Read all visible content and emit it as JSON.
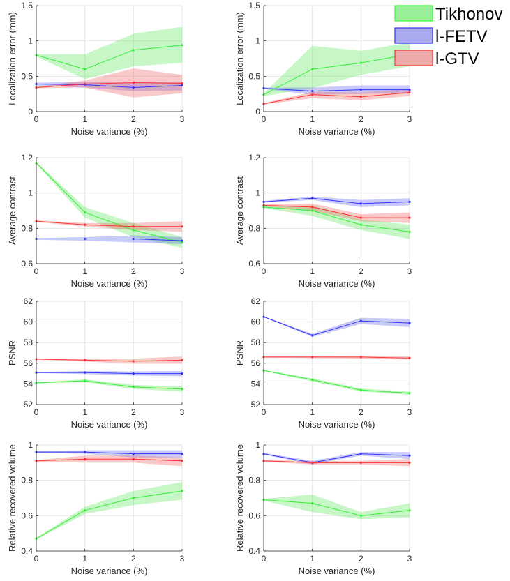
{
  "legend": [
    {
      "label": "Tikhonov",
      "color": "#33ff33",
      "fill": "#99ee99"
    },
    {
      "label": "l-FETV",
      "color": "#3333ff",
      "fill": "#aaaaee"
    },
    {
      "label": "l-GTV",
      "color": "#ff3333",
      "fill": "#eeaaaa"
    }
  ],
  "chart_data": [
    {
      "type": "line",
      "xlabel": "Noise variance (%)",
      "ylabel": "Localization error (mm)",
      "xlim": [
        0,
        3
      ],
      "ylim": [
        0,
        1.5
      ],
      "xticks": [
        "0",
        "1",
        "2",
        "3"
      ],
      "yticks": [
        "0",
        "0.5",
        "1",
        "1.5"
      ],
      "grid": true,
      "x": [
        0,
        1,
        2,
        3
      ],
      "series": [
        {
          "name": "Tikhonov",
          "values": [
            0.8,
            0.6,
            0.87,
            0.94
          ],
          "lower": [
            0.78,
            0.46,
            0.64,
            0.69
          ],
          "upper": [
            0.81,
            0.81,
            1.1,
            1.2
          ]
        },
        {
          "name": "l-FETV",
          "values": [
            0.39,
            0.38,
            0.34,
            0.37
          ],
          "lower": [
            0.37,
            0.34,
            0.29,
            0.3
          ],
          "upper": [
            0.41,
            0.42,
            0.41,
            0.42
          ]
        },
        {
          "name": "l-GTV",
          "values": [
            0.34,
            0.39,
            0.41,
            0.4
          ],
          "lower": [
            0.33,
            0.34,
            0.2,
            0.26
          ],
          "upper": [
            0.35,
            0.44,
            0.61,
            0.52
          ]
        }
      ]
    },
    {
      "type": "line",
      "xlabel": "Noise variance (%)",
      "ylabel": "Localization error (mm)",
      "xlim": [
        0,
        3
      ],
      "ylim": [
        0,
        1.5
      ],
      "xticks": [
        "0",
        "1",
        "2",
        "3"
      ],
      "yticks": [
        "0",
        "0.5",
        "1",
        "1.5"
      ],
      "grid": true,
      "x": [
        0,
        1,
        2,
        3
      ],
      "series": [
        {
          "name": "Tikhonov",
          "values": [
            0.24,
            0.6,
            0.69,
            0.81
          ],
          "lower": [
            0.22,
            0.33,
            0.52,
            0.64
          ],
          "upper": [
            0.26,
            0.93,
            0.86,
            0.98
          ]
        },
        {
          "name": "l-FETV",
          "values": [
            0.33,
            0.29,
            0.31,
            0.31
          ],
          "lower": [
            0.32,
            0.24,
            0.25,
            0.26
          ],
          "upper": [
            0.34,
            0.34,
            0.37,
            0.37
          ]
        },
        {
          "name": "l-GTV",
          "values": [
            0.11,
            0.24,
            0.21,
            0.27
          ],
          "lower": [
            0.1,
            0.19,
            0.16,
            0.22
          ],
          "upper": [
            0.12,
            0.28,
            0.27,
            0.32
          ]
        }
      ]
    },
    {
      "type": "line",
      "xlabel": "Noise variance (%)",
      "ylabel": "Average contrast",
      "xlim": [
        0,
        3
      ],
      "ylim": [
        0.6,
        1.2
      ],
      "xticks": [
        "0",
        "1",
        "2",
        "3"
      ],
      "yticks": [
        "0.6",
        "0.8",
        "1",
        "1.2"
      ],
      "grid": true,
      "x": [
        0,
        1,
        2,
        3
      ],
      "series": [
        {
          "name": "Tikhonov",
          "values": [
            1.17,
            0.89,
            0.79,
            0.72
          ],
          "lower": [
            1.165,
            0.86,
            0.75,
            0.69
          ],
          "upper": [
            1.175,
            0.92,
            0.83,
            0.75
          ]
        },
        {
          "name": "l-FETV",
          "values": [
            0.74,
            0.74,
            0.74,
            0.73
          ],
          "lower": [
            0.735,
            0.73,
            0.72,
            0.71
          ],
          "upper": [
            0.745,
            0.75,
            0.76,
            0.75
          ]
        },
        {
          "name": "l-GTV",
          "values": [
            0.84,
            0.82,
            0.81,
            0.81
          ],
          "lower": [
            0.835,
            0.81,
            0.79,
            0.78
          ],
          "upper": [
            0.845,
            0.83,
            0.83,
            0.84
          ]
        }
      ]
    },
    {
      "type": "line",
      "xlabel": "Noise variance (%)",
      "ylabel": "Average contrast",
      "xlim": [
        0,
        3
      ],
      "ylim": [
        0.6,
        1.2
      ],
      "xticks": [
        "0",
        "1",
        "2",
        "3"
      ],
      "yticks": [
        "0.6",
        "0.8",
        "1",
        "1.2"
      ],
      "grid": true,
      "x": [
        0,
        1,
        2,
        3
      ],
      "series": [
        {
          "name": "Tikhonov",
          "values": [
            0.92,
            0.9,
            0.82,
            0.78
          ],
          "lower": [
            0.915,
            0.87,
            0.79,
            0.74
          ],
          "upper": [
            0.925,
            0.93,
            0.85,
            0.82
          ]
        },
        {
          "name": "l-FETV",
          "values": [
            0.95,
            0.97,
            0.94,
            0.95
          ],
          "lower": [
            0.945,
            0.96,
            0.92,
            0.93
          ],
          "upper": [
            0.955,
            0.98,
            0.96,
            0.97
          ]
        },
        {
          "name": "l-GTV",
          "values": [
            0.93,
            0.92,
            0.86,
            0.86
          ],
          "lower": [
            0.925,
            0.9,
            0.84,
            0.83
          ],
          "upper": [
            0.935,
            0.94,
            0.88,
            0.89
          ]
        }
      ]
    },
    {
      "type": "line",
      "xlabel": "Noise variance (%)",
      "ylabel": "PSNR",
      "xlim": [
        0,
        3
      ],
      "ylim": [
        52,
        62
      ],
      "xticks": [
        "0",
        "1",
        "2",
        "3"
      ],
      "yticks": [
        "52",
        "54",
        "56",
        "58",
        "60",
        "62"
      ],
      "grid": true,
      "x": [
        0,
        1,
        2,
        3
      ],
      "series": [
        {
          "name": "Tikhonov",
          "values": [
            54.1,
            54.3,
            53.7,
            53.5
          ],
          "lower": [
            54.05,
            54.15,
            53.5,
            53.25
          ],
          "upper": [
            54.15,
            54.45,
            53.9,
            53.75
          ]
        },
        {
          "name": "l-FETV",
          "values": [
            55.1,
            55.1,
            55.0,
            55.0
          ],
          "lower": [
            55.05,
            54.95,
            54.8,
            54.75
          ],
          "upper": [
            55.15,
            55.25,
            55.2,
            55.25
          ]
        },
        {
          "name": "l-GTV",
          "values": [
            56.4,
            56.3,
            56.2,
            56.3
          ],
          "lower": [
            56.35,
            56.15,
            55.95,
            55.95
          ],
          "upper": [
            56.45,
            56.45,
            56.45,
            56.65
          ]
        }
      ]
    },
    {
      "type": "line",
      "xlabel": "Noise variance (%)",
      "ylabel": "PSNR",
      "xlim": [
        0,
        3
      ],
      "ylim": [
        52,
        62
      ],
      "xticks": [
        "0",
        "1",
        "2",
        "3"
      ],
      "yticks": [
        "52",
        "54",
        "56",
        "58",
        "60",
        "62"
      ],
      "grid": true,
      "x": [
        0,
        1,
        2,
        3
      ],
      "series": [
        {
          "name": "Tikhonov",
          "values": [
            55.3,
            54.4,
            53.4,
            53.1
          ],
          "lower": [
            55.25,
            54.25,
            53.25,
            52.95
          ],
          "upper": [
            55.35,
            54.55,
            53.55,
            53.25
          ]
        },
        {
          "name": "l-FETV",
          "values": [
            60.5,
            58.7,
            60.1,
            59.9
          ],
          "lower": [
            60.45,
            58.55,
            59.8,
            59.5
          ],
          "upper": [
            60.55,
            58.85,
            60.4,
            60.3
          ]
        },
        {
          "name": "l-GTV",
          "values": [
            56.6,
            56.6,
            56.6,
            56.5
          ],
          "lower": [
            56.55,
            56.5,
            56.45,
            56.35
          ],
          "upper": [
            56.65,
            56.7,
            56.75,
            56.65
          ]
        }
      ]
    },
    {
      "type": "line",
      "xlabel": "Noise variance (%)",
      "ylabel": "Relative recovered volume",
      "xlim": [
        0,
        3
      ],
      "ylim": [
        0.4,
        1.0
      ],
      "xticks": [
        "0",
        "1",
        "2",
        "3"
      ],
      "yticks": [
        "0.4",
        "0.6",
        "0.8",
        "1"
      ],
      "grid": true,
      "x": [
        0,
        1,
        2,
        3
      ],
      "series": [
        {
          "name": "Tikhonov",
          "values": [
            0.47,
            0.63,
            0.7,
            0.74
          ],
          "lower": [
            0.465,
            0.61,
            0.66,
            0.69
          ],
          "upper": [
            0.475,
            0.65,
            0.74,
            0.79
          ]
        },
        {
          "name": "l-FETV",
          "values": [
            0.96,
            0.96,
            0.95,
            0.95
          ],
          "lower": [
            0.955,
            0.95,
            0.93,
            0.93
          ],
          "upper": [
            0.965,
            0.97,
            0.97,
            0.97
          ]
        },
        {
          "name": "l-GTV",
          "values": [
            0.91,
            0.92,
            0.92,
            0.91
          ],
          "lower": [
            0.905,
            0.9,
            0.9,
            0.88
          ],
          "upper": [
            0.915,
            0.94,
            0.94,
            0.93
          ]
        }
      ]
    },
    {
      "type": "line",
      "xlabel": "Noise variance (%)",
      "ylabel": "Relative recovered volume",
      "xlim": [
        0,
        3
      ],
      "ylim": [
        0.4,
        1.0
      ],
      "xticks": [
        "0",
        "1",
        "2",
        "3"
      ],
      "yticks": [
        "0.4",
        "0.6",
        "0.8",
        "1"
      ],
      "grid": true,
      "x": [
        0,
        1,
        2,
        3
      ],
      "series": [
        {
          "name": "Tikhonov",
          "values": [
            0.69,
            0.67,
            0.6,
            0.63
          ],
          "lower": [
            0.685,
            0.62,
            0.58,
            0.59
          ],
          "upper": [
            0.695,
            0.72,
            0.62,
            0.67
          ]
        },
        {
          "name": "l-FETV",
          "values": [
            0.95,
            0.9,
            0.95,
            0.94
          ],
          "lower": [
            0.945,
            0.89,
            0.94,
            0.92
          ],
          "upper": [
            0.955,
            0.91,
            0.96,
            0.96
          ]
        },
        {
          "name": "l-GTV",
          "values": [
            0.91,
            0.9,
            0.9,
            0.9
          ],
          "lower": [
            0.905,
            0.89,
            0.89,
            0.88
          ],
          "upper": [
            0.915,
            0.91,
            0.91,
            0.92
          ]
        }
      ]
    }
  ]
}
